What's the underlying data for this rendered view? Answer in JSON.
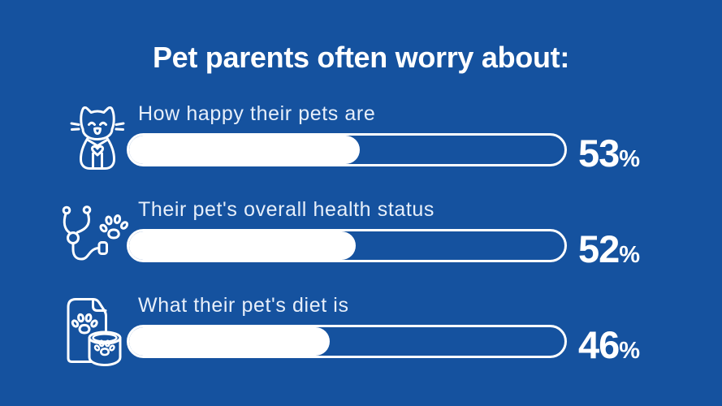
{
  "title": "Pet parents often worry about:",
  "colors": {
    "background": "#15529F",
    "title_text": "#FFFFFF",
    "label_text": "#E7EFFA",
    "bar_border": "#FFFFFF",
    "bar_fill": "#FFFFFF",
    "value_text": "#FFFFFF"
  },
  "rows": [
    {
      "icon": "cat-icon",
      "label": "How happy their pets are",
      "value": 53,
      "unit": "%"
    },
    {
      "icon": "stethoscope-paw-icon",
      "label": "Their pet's overall health status",
      "value": 52,
      "unit": "%"
    },
    {
      "icon": "pet-food-icon",
      "label": "What their pet's diet is",
      "value": 46,
      "unit": "%"
    }
  ],
  "chart_data": {
    "type": "bar",
    "orientation": "horizontal",
    "title": "Pet parents often worry about:",
    "categories": [
      "How happy their pets are",
      "Their pet's overall health status",
      "What their pet's diet is"
    ],
    "values": [
      53,
      52,
      46
    ],
    "value_suffix": "%",
    "xlim": [
      0,
      100
    ],
    "grid": false,
    "legend": false,
    "icons": [
      "cat-icon",
      "stethoscope-paw-icon",
      "pet-food-icon"
    ]
  }
}
